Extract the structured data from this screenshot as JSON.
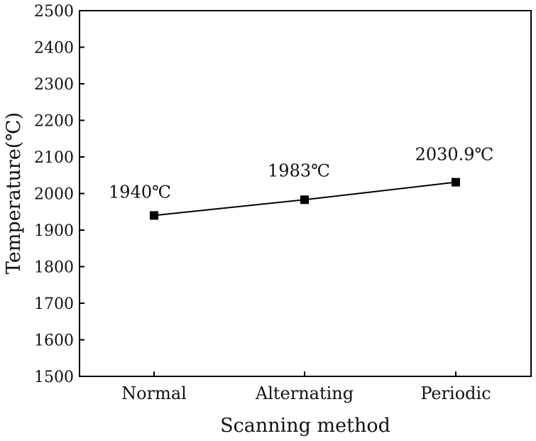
{
  "chart_data": {
    "type": "line",
    "title": "",
    "xlabel": "Scanning method",
    "ylabel": "Temperature(℃)",
    "categories": [
      "Normal",
      "Alternating",
      "Periodic"
    ],
    "series": [
      {
        "name": "Temperature",
        "values": [
          1940,
          1983,
          2030.9
        ],
        "labels": [
          "1940℃",
          "1983℃",
          "2030.9℃"
        ]
      }
    ],
    "ylim": [
      1500,
      2500
    ],
    "yticks": [
      1500,
      1600,
      1700,
      1800,
      1900,
      2000,
      2100,
      2200,
      2300,
      2400,
      2500
    ],
    "grid": false,
    "legend": "none",
    "colors": {
      "line": "#000000",
      "marker": "#000000",
      "axis": "#000000"
    }
  }
}
